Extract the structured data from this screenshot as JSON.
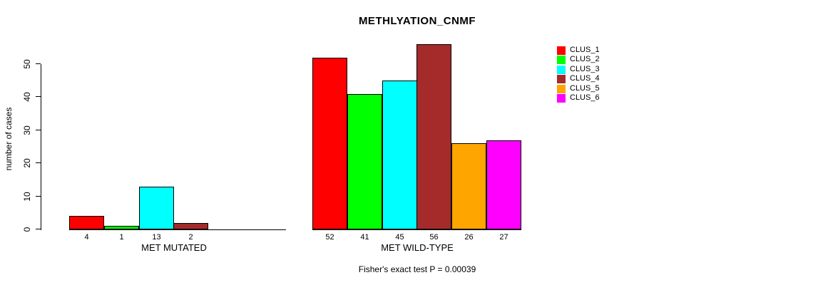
{
  "chart_data": {
    "type": "bar",
    "title": "METHLYATION_CNMF",
    "ylabel": "number of cases",
    "ylim": [
      0,
      58
    ],
    "yticks": [
      0,
      10,
      20,
      30,
      40,
      50
    ],
    "grid": false,
    "legend_position": "right-outside",
    "legend": [
      {
        "label": "CLUS_1",
        "color": "#FF0000"
      },
      {
        "label": "CLUS_2",
        "color": "#00FF00"
      },
      {
        "label": "CLUS_3",
        "color": "#00FFFF"
      },
      {
        "label": "CLUS_4",
        "color": "#A52A2A"
      },
      {
        "label": "CLUS_5",
        "color": "#FFA500"
      },
      {
        "label": "CLUS_6",
        "color": "#FF00FF"
      }
    ],
    "groups": [
      {
        "label": "MET MUTATED",
        "bars": [
          {
            "cluster": "CLUS_1",
            "value": 4,
            "color": "#FF0000"
          },
          {
            "cluster": "CLUS_2",
            "value": 1,
            "color": "#00FF00"
          },
          {
            "cluster": "CLUS_3",
            "value": 13,
            "color": "#00FFFF"
          },
          {
            "cluster": "CLUS_4",
            "value": 2,
            "color": "#A52A2A"
          }
        ]
      },
      {
        "label": "MET WILD-TYPE",
        "bars": [
          {
            "cluster": "CLUS_1",
            "value": 52,
            "color": "#FF0000"
          },
          {
            "cluster": "CLUS_2",
            "value": 41,
            "color": "#00FF00"
          },
          {
            "cluster": "CLUS_3",
            "value": 45,
            "color": "#00FFFF"
          },
          {
            "cluster": "CLUS_4",
            "value": 56,
            "color": "#A52A2A"
          },
          {
            "cluster": "CLUS_5",
            "value": 26,
            "color": "#FFA500"
          },
          {
            "cluster": "CLUS_6",
            "value": 27,
            "color": "#FF00FF"
          }
        ]
      }
    ],
    "footer": "Fisher's exact test P = 0.00039"
  }
}
